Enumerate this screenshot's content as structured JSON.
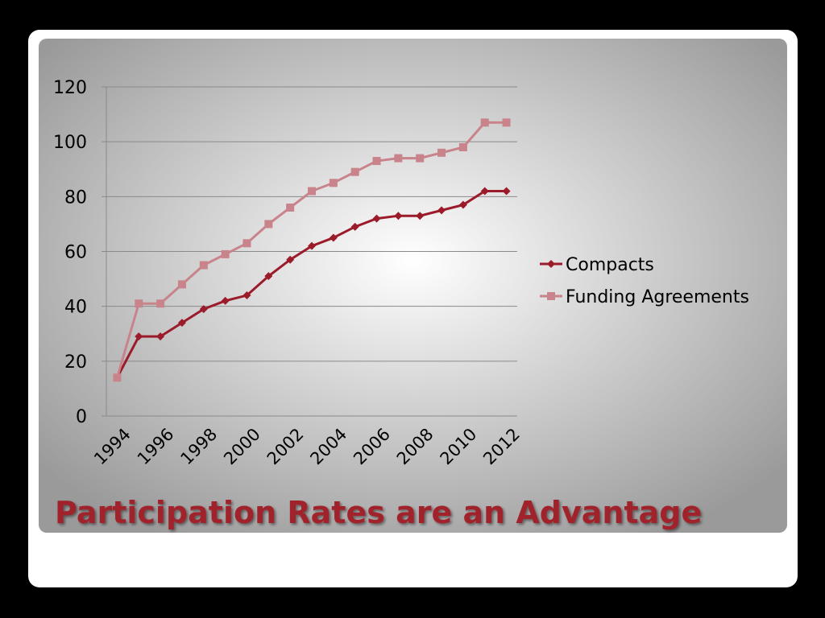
{
  "chart_data": {
    "type": "line",
    "title": "Participation Rates are an Advantage",
    "categories": [
      "1994",
      null,
      "1996",
      null,
      "1998",
      null,
      "2000",
      null,
      "2002",
      null,
      "2004",
      null,
      "2006",
      null,
      "2008",
      null,
      "2010",
      null,
      "2012"
    ],
    "series": [
      {
        "name": "Compacts",
        "color": "#9b1b2a",
        "marker": "diamond",
        "values": [
          14,
          29,
          29,
          34,
          39,
          42,
          44,
          51,
          57,
          62,
          65,
          69,
          72,
          73,
          73,
          75,
          77,
          82,
          82
        ]
      },
      {
        "name": "Funding Agreements",
        "color": "#c8838b",
        "marker": "square",
        "values": [
          14,
          41,
          41,
          48,
          55,
          59,
          63,
          70,
          76,
          82,
          85,
          89,
          93,
          94,
          94,
          96,
          98,
          107,
          107
        ]
      }
    ],
    "ylim": [
      0,
      120
    ],
    "yticks": [
      0,
      20,
      40,
      60,
      80,
      100,
      120
    ],
    "grid": true,
    "legend": "right"
  }
}
